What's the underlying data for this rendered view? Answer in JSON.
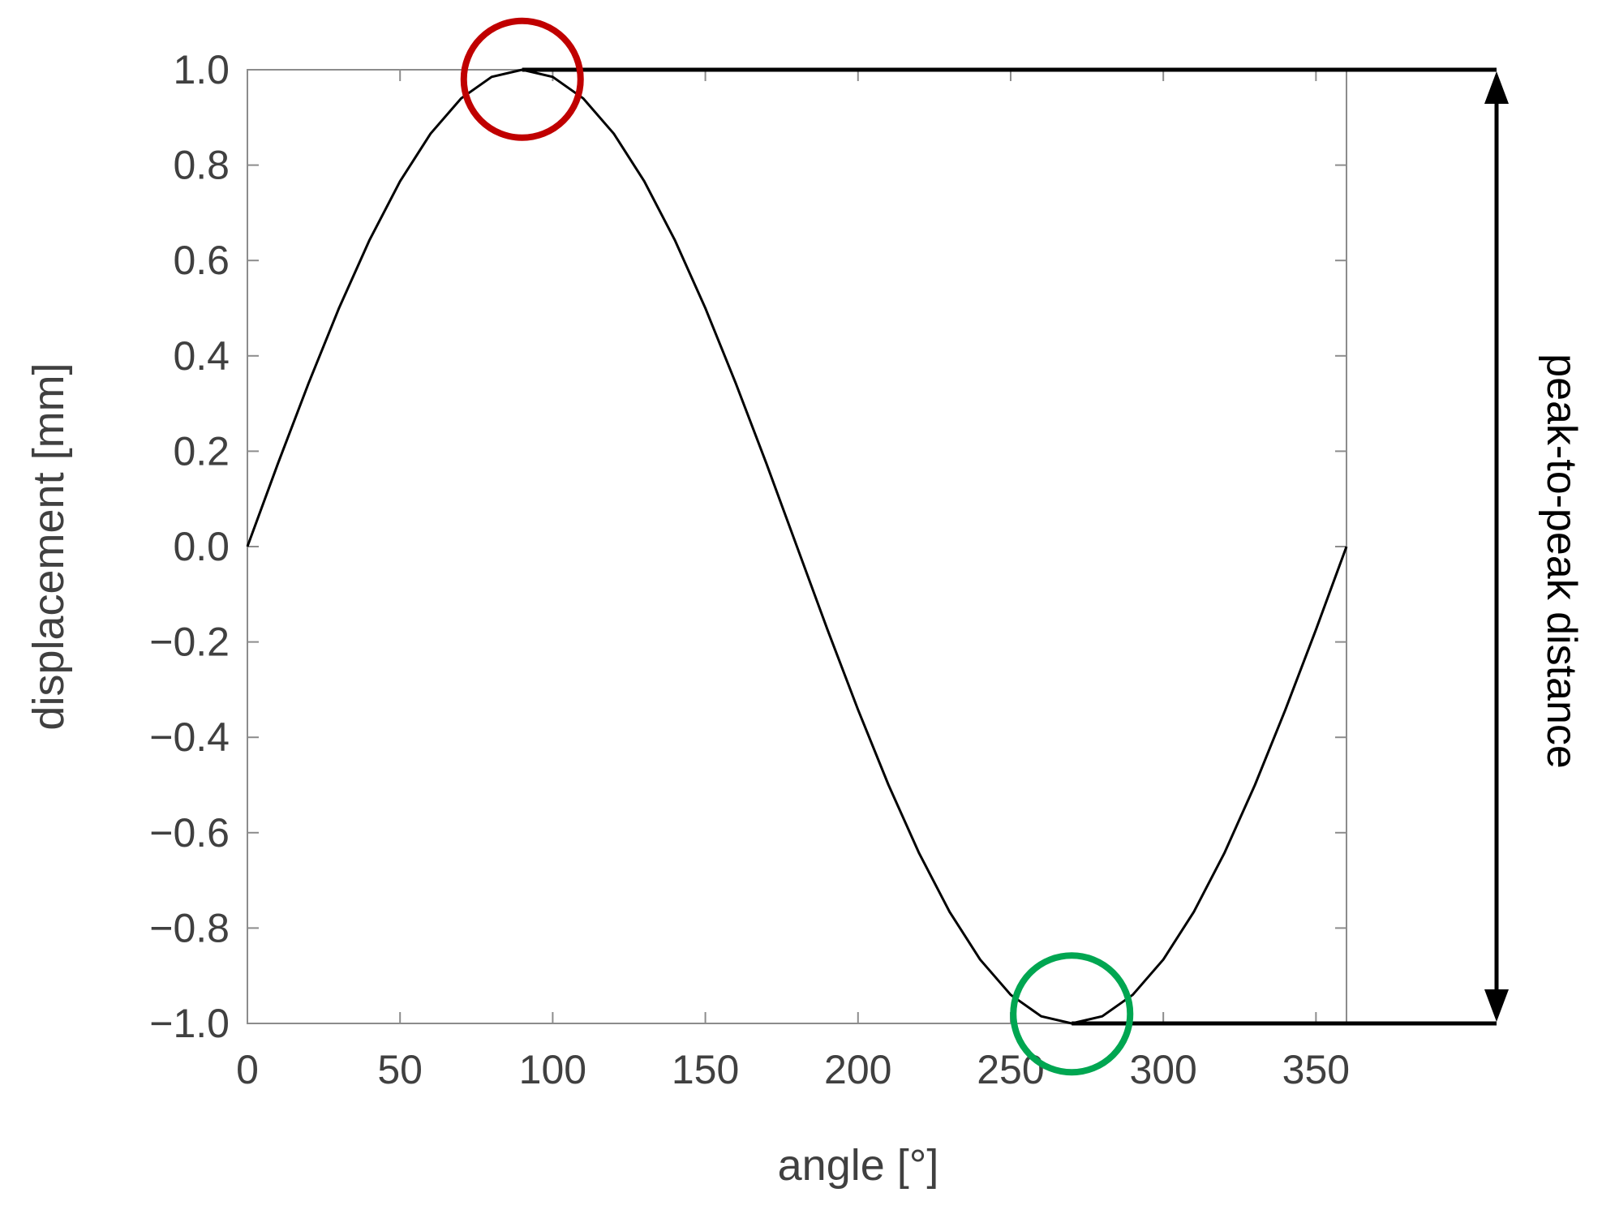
{
  "chart_data": {
    "type": "line",
    "title": "",
    "xlabel": "angle [°]",
    "ylabel": "displacement [mm]",
    "xlim": [
      0,
      360
    ],
    "ylim": [
      -1.0,
      1.0
    ],
    "xticks": [
      0,
      50,
      100,
      150,
      200,
      250,
      300,
      350
    ],
    "xtick_labels": [
      "0",
      "50",
      "100",
      "150",
      "200",
      "250",
      "300",
      "350"
    ],
    "yticks": [
      1.0,
      0.8,
      0.6,
      0.4,
      0.2,
      0.0,
      -0.2,
      -0.4,
      -0.6,
      -0.8,
      -1.0
    ],
    "ytick_labels": [
      "1.0",
      "0.8",
      "0.6",
      "0.4",
      "0.2",
      "0.0",
      "−0.2",
      "−0.4",
      "−0.6",
      "−0.8",
      "−1.0"
    ],
    "grid": false,
    "series": [
      {
        "x": [
          0,
          10,
          20,
          30,
          40,
          50,
          60,
          70,
          80,
          90,
          100,
          110,
          120,
          130,
          140,
          150,
          160,
          170,
          180,
          190,
          200,
          210,
          220,
          230,
          240,
          250,
          260,
          270,
          280,
          290,
          300,
          310,
          320,
          330,
          340,
          350,
          360
        ],
        "y": [
          0.0,
          0.174,
          0.342,
          0.5,
          0.643,
          0.766,
          0.866,
          0.94,
          0.985,
          1.0,
          0.985,
          0.94,
          0.866,
          0.766,
          0.643,
          0.5,
          0.342,
          0.174,
          0.0,
          -0.174,
          -0.342,
          -0.5,
          -0.643,
          -0.766,
          -0.866,
          -0.94,
          -0.985,
          -1.0,
          -0.985,
          -0.94,
          -0.866,
          -0.766,
          -0.643,
          -0.5,
          -0.342,
          -0.174,
          0.0
        ],
        "color": "#000000"
      }
    ],
    "annotations": {
      "peak_marker": {
        "x": 90,
        "y": 0.98,
        "color": "#c00000"
      },
      "trough_marker": {
        "x": 270,
        "y": -0.98,
        "color": "#00a651"
      },
      "peak_to_peak": {
        "label": "peak-to-peak distance",
        "from": -1.0,
        "to": 1.0
      }
    }
  }
}
